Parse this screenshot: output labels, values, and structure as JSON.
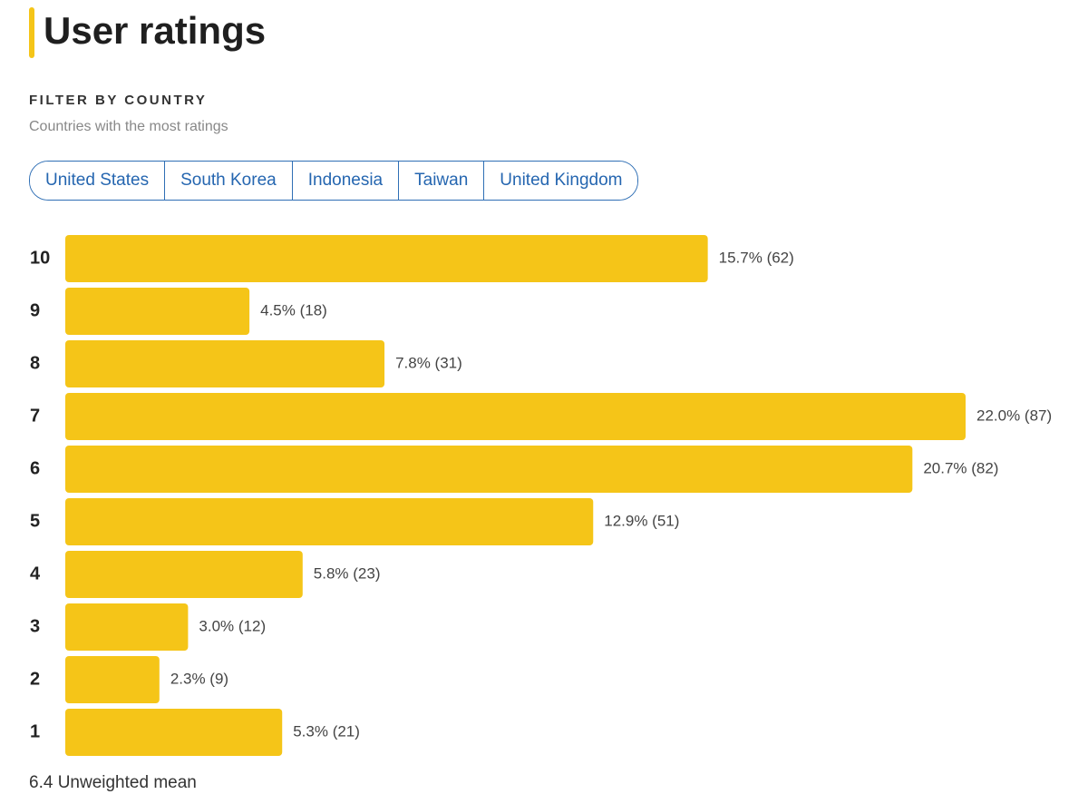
{
  "header": {
    "title": "User ratings"
  },
  "filter": {
    "label": "FILTER BY COUNTRY",
    "subtitle": "Countries with the most ratings",
    "countries": [
      "United States",
      "South Korea",
      "Indonesia",
      "Taiwan",
      "United Kingdom"
    ]
  },
  "chart_data": {
    "type": "bar",
    "orientation": "horizontal",
    "categories": [
      "10",
      "9",
      "8",
      "7",
      "6",
      "5",
      "4",
      "3",
      "2",
      "1"
    ],
    "values": [
      15.7,
      4.5,
      7.8,
      22.0,
      20.7,
      12.9,
      5.8,
      3.0,
      2.3,
      5.3
    ],
    "value_labels": [
      "15.7% (62)",
      "4.5% (18)",
      "7.8% (31)",
      "22.0% (87)",
      "20.7% (82)",
      "12.9% (51)",
      "5.8% (23)",
      "3.0% (12)",
      "2.3% (9)",
      "5.3% (21)"
    ],
    "color": "#f5c518"
  },
  "footer": {
    "mean": "6.4 Unweighted mean"
  }
}
